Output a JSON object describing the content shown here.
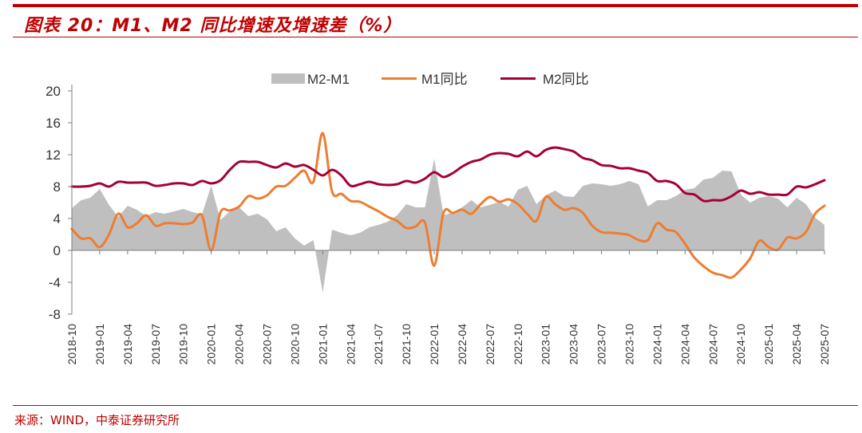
{
  "header": {
    "title": "图表 20：M1、M2 同比增速及增速差（%）",
    "accent_color": "#c00000"
  },
  "footer": {
    "source": "来源：WIND，中泰证券研究所"
  },
  "chart_data": {
    "type": "line",
    "title": "",
    "xlabel": "",
    "ylabel": "",
    "ylim": [
      -8,
      20
    ],
    "yticks": [
      "20",
      "16",
      "12",
      "8",
      "4",
      "0",
      "-4",
      "-8"
    ],
    "yticks_values": [
      20,
      16,
      12,
      8,
      4,
      0,
      -4,
      -8
    ],
    "grid": false,
    "legend_position": "top",
    "x": [
      "2018-10",
      "2018-11",
      "2018-12",
      "2019-01",
      "2019-02",
      "2019-03",
      "2019-04",
      "2019-05",
      "2019-06",
      "2019-07",
      "2019-08",
      "2019-09",
      "2019-10",
      "2019-11",
      "2019-12",
      "2020-01",
      "2020-02",
      "2020-03",
      "2020-04",
      "2020-05",
      "2020-06",
      "2020-07",
      "2020-08",
      "2020-09",
      "2020-10",
      "2020-11",
      "2020-12",
      "2021-01",
      "2021-02",
      "2021-03",
      "2021-04",
      "2021-05",
      "2021-06",
      "2021-07",
      "2021-08",
      "2021-09",
      "2021-10",
      "2021-11",
      "2021-12",
      "2022-01",
      "2022-02",
      "2022-03",
      "2022-04",
      "2022-05",
      "2022-06",
      "2022-07",
      "2022-08",
      "2022-09",
      "2022-10",
      "2022-11",
      "2022-12",
      "2023-01",
      "2023-02",
      "2023-03",
      "2023-04",
      "2023-05",
      "2023-06",
      "2023-07",
      "2023-08",
      "2023-09",
      "2023-10",
      "2023-11",
      "2023-12",
      "2024-01",
      "2024-02",
      "2024-03",
      "2024-04",
      "2024-05",
      "2024-06",
      "2024-07",
      "2024-08",
      "2024-09",
      "2024-10",
      "2024-11",
      "2024-12",
      "2025-01",
      "2025-02",
      "2025-03",
      "2025-04",
      "2025-05",
      "2025-06",
      "2025-07"
    ],
    "xticks": [
      "2018-10",
      "2019-01",
      "2019-04",
      "2019-07",
      "2019-10",
      "2020-01",
      "2020-04",
      "2020-07",
      "2020-10",
      "2021-01",
      "2021-04",
      "2021-07",
      "2021-10",
      "2022-01",
      "2022-04",
      "2022-07",
      "2022-10",
      "2023-01",
      "2023-04",
      "2023-07",
      "2023-10",
      "2024-01",
      "2024-04",
      "2024-07",
      "2024-10",
      "2025-01",
      "2025-04",
      "2025-07"
    ],
    "series": [
      {
        "name": "M2-M1",
        "type": "area",
        "color": "#bfbfbf",
        "values": [
          5.3,
          6.3,
          6.6,
          7.7,
          5.7,
          4.2,
          5.6,
          5.1,
          4.3,
          4.8,
          4.6,
          4.9,
          5.2,
          4.8,
          4.5,
          8.1,
          3.8,
          4.9,
          5.4,
          4.3,
          4.6,
          3.9,
          2.4,
          2.9,
          1.5,
          0.6,
          1.3,
          -5.3,
          2.6,
          2.2,
          1.9,
          2.2,
          2.9,
          3.2,
          3.6,
          4.4,
          5.8,
          5.4,
          5.4,
          11.5,
          4.4,
          4.8,
          5.4,
          6.3,
          5.4,
          5.7,
          6.1,
          5.5,
          7.6,
          8.1,
          5.8,
          6.9,
          7.5,
          6.8,
          6.7,
          8.1,
          8.4,
          8.3,
          8.1,
          8.3,
          8.7,
          8.3,
          5.5,
          6.3,
          6.3,
          6.8,
          7.6,
          7.8,
          8.9,
          9.1,
          10.0,
          9.9,
          7.0,
          6.0,
          6.6,
          6.8,
          6.5,
          5.4,
          6.6,
          5.8,
          4.1,
          3.2
        ]
      },
      {
        "name": "M1同比",
        "type": "line",
        "color": "#ed7d31",
        "values": [
          2.7,
          1.5,
          1.5,
          0.4,
          2.0,
          4.6,
          2.9,
          3.4,
          4.4,
          3.1,
          3.4,
          3.4,
          3.3,
          3.5,
          4.4,
          0.0,
          4.8,
          5.0,
          5.5,
          6.8,
          6.5,
          6.9,
          8.0,
          8.1,
          9.1,
          10.0,
          8.6,
          14.7,
          7.4,
          7.1,
          6.2,
          6.1,
          5.5,
          4.9,
          4.2,
          3.7,
          2.8,
          3.0,
          3.5,
          -1.9,
          4.7,
          4.7,
          5.1,
          4.6,
          5.8,
          6.7,
          6.1,
          6.4,
          5.8,
          4.6,
          3.7,
          6.7,
          5.8,
          5.1,
          5.3,
          4.7,
          3.1,
          2.3,
          2.2,
          2.1,
          1.9,
          1.3,
          1.3,
          3.4,
          2.6,
          2.3,
          0.8,
          -0.9,
          -2.0,
          -2.8,
          -3.1,
          -3.4,
          -2.4,
          -1.0,
          1.2,
          0.4,
          0.1,
          1.6,
          1.5,
          2.3,
          4.6,
          5.6
        ]
      },
      {
        "name": "M2同比",
        "type": "line",
        "color": "#a50034",
        "values": [
          8.0,
          8.0,
          8.1,
          8.4,
          8.0,
          8.6,
          8.5,
          8.5,
          8.5,
          8.1,
          8.2,
          8.4,
          8.4,
          8.2,
          8.7,
          8.4,
          8.8,
          10.1,
          11.1,
          11.1,
          11.1,
          10.7,
          10.4,
          10.9,
          10.5,
          10.7,
          10.1,
          9.4,
          10.1,
          9.4,
          8.1,
          8.3,
          8.6,
          8.3,
          8.2,
          8.3,
          8.7,
          8.5,
          9.0,
          9.8,
          9.2,
          9.7,
          10.5,
          11.1,
          11.4,
          12.0,
          12.2,
          12.1,
          11.8,
          12.4,
          11.8,
          12.6,
          12.9,
          12.7,
          12.4,
          11.6,
          11.3,
          10.7,
          10.6,
          10.3,
          10.3,
          10.0,
          9.7,
          8.7,
          8.7,
          8.3,
          7.2,
          7.0,
          6.2,
          6.3,
          6.3,
          6.8,
          7.5,
          7.1,
          7.3,
          7.0,
          7.0,
          7.0,
          8.0,
          7.9,
          8.3,
          8.8
        ]
      }
    ]
  }
}
